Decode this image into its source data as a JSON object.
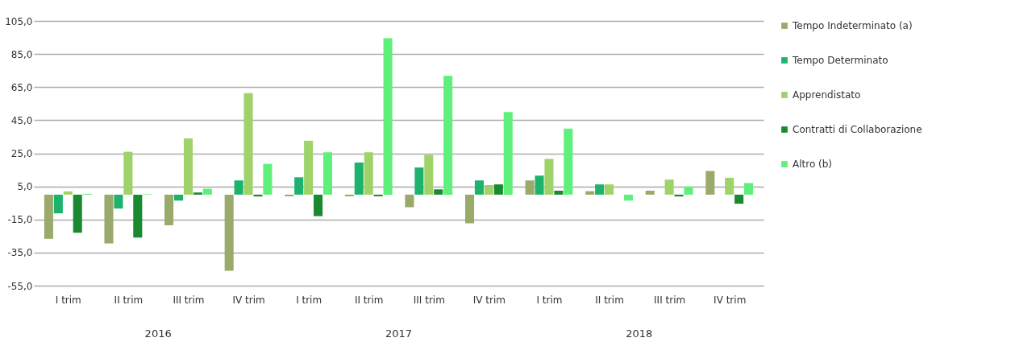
{
  "chart_data": {
    "type": "bar",
    "categories": [
      "I trim",
      "II trim",
      "III trim",
      "IV trim",
      "I trim",
      "II trim",
      "III trim",
      "IV trim",
      "I trim",
      "II trim",
      "III trim",
      "IV trim"
    ],
    "annotations": [
      "2016",
      "2017",
      "2018"
    ],
    "series": [
      {
        "name": "Tempo Indeterminato (a)",
        "color": "#9aaa6a",
        "values": [
          -26.7,
          -29.5,
          -18.5,
          -46,
          -1,
          -1,
          -7.6,
          -17.3,
          8.6,
          2.1,
          2.4,
          14.3
        ]
      },
      {
        "name": "Tempo Determinato",
        "color": "#1db36e",
        "values": [
          -11.3,
          -8.4,
          -3.6,
          8.6,
          10.5,
          19.4,
          16.4,
          8.6,
          11.5,
          6.2,
          0,
          0
        ]
      },
      {
        "name": "Apprendistato",
        "color": "#9fd36a",
        "values": [
          2,
          25.9,
          34,
          61.3,
          32.6,
          25.6,
          24,
          5.8,
          21.6,
          6.2,
          9.1,
          10.2
        ]
      },
      {
        "name": "Contratti  di Collaborazione",
        "color": "#1a8a30",
        "values": [
          -23,
          -25.9,
          1.3,
          -1.1,
          -13,
          -1,
          3.2,
          6.2,
          2.4,
          0,
          -1.1,
          -5.5
        ]
      },
      {
        "name": "Altro (b)",
        "color": "#5ef07a",
        "values": [
          0.5,
          0.3,
          3.6,
          18.6,
          25.6,
          94.5,
          71.8,
          49.9,
          39.9,
          -3.6,
          4.9,
          7
        ]
      }
    ],
    "ylim": [
      -55,
      105
    ],
    "yticks": [
      {
        "value": -55,
        "label": "-55,0"
      },
      {
        "value": -35,
        "label": "-35,0"
      },
      {
        "value": -15,
        "label": "-15,0"
      },
      {
        "value": 5,
        "label": "5,0"
      },
      {
        "value": 25,
        "label": "25,0"
      },
      {
        "value": 45,
        "label": "45,0"
      },
      {
        "value": 65,
        "label": "65,0"
      },
      {
        "value": 85,
        "label": "85,0"
      },
      {
        "value": 105,
        "label": "105,0"
      }
    ],
    "grid": "y",
    "legend": "right"
  }
}
